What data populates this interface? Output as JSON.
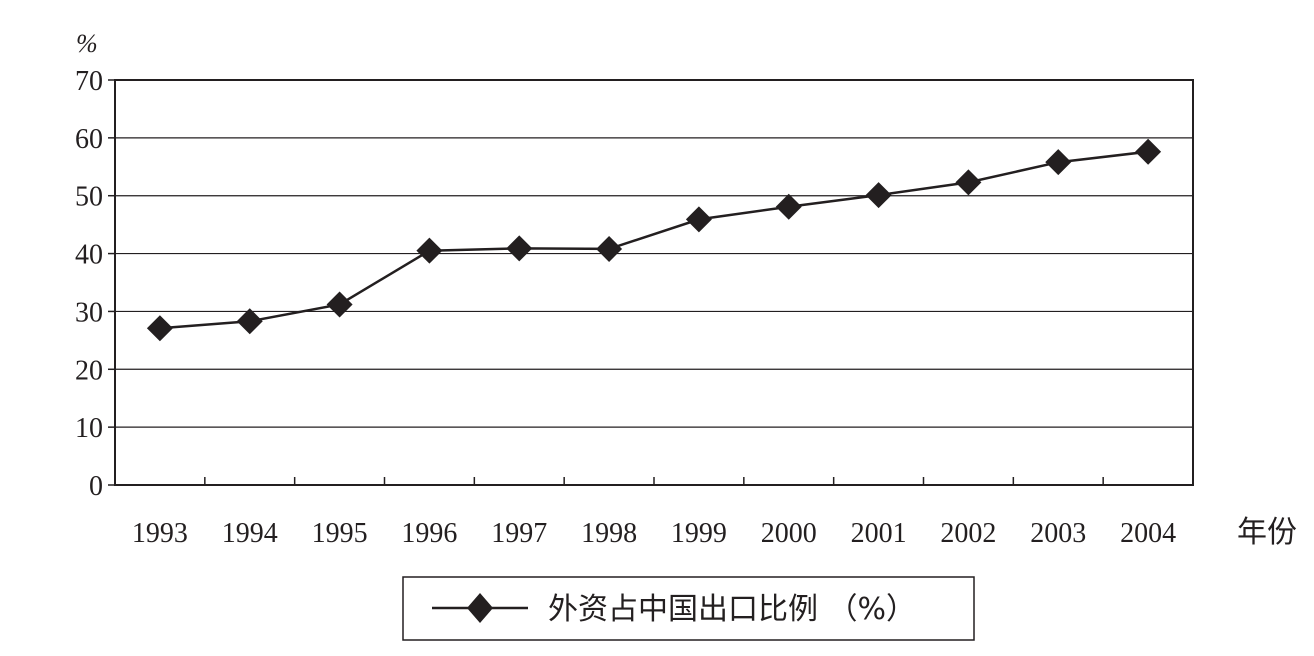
{
  "chart_data": {
    "type": "line",
    "y_unit_label": "%",
    "xlabel": "年份",
    "ylim": [
      0,
      70
    ],
    "y_ticks": [
      0,
      10,
      20,
      30,
      40,
      50,
      60,
      70
    ],
    "grid": "horizontal",
    "legend_position": "bottom-center",
    "categories": [
      "1993",
      "1994",
      "1995",
      "1996",
      "1997",
      "1998",
      "1999",
      "2000",
      "2001",
      "2002",
      "2003",
      "2004"
    ],
    "series": [
      {
        "name": "外资占中国出口比例",
        "values": [
          27.1,
          28.3,
          31.2,
          40.5,
          40.9,
          40.8,
          45.9,
          48.1,
          50.1,
          52.3,
          55.8,
          57.6
        ],
        "color": "#231f20",
        "marker": "diamond"
      }
    ],
    "legend_label": "外资占中国出口比例 （%）"
  }
}
